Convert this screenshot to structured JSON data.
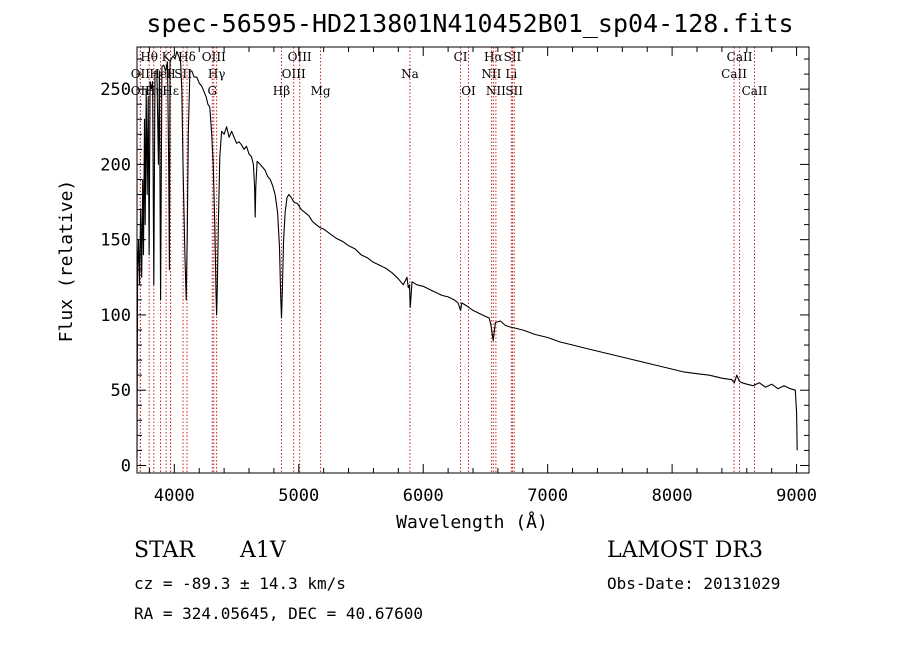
{
  "chart_data": {
    "type": "line",
    "title": "spec-56595-HD213801N410452B01_sp04-128.fits",
    "xlabel": "Wavelength (Å)",
    "ylabel": "Flux (relative)",
    "xlim": [
      3700,
      9100
    ],
    "ylim": [
      -5,
      278
    ],
    "x_ticks": [
      4000,
      5000,
      6000,
      7000,
      8000,
      9000
    ],
    "y_ticks": [
      0,
      50,
      100,
      150,
      200,
      250
    ],
    "series": [
      {
        "name": "flux",
        "points": [
          [
            3700,
            5
          ],
          [
            3705,
            130
          ],
          [
            3712,
            150
          ],
          [
            3720,
            120
          ],
          [
            3730,
            170
          ],
          [
            3738,
            125
          ],
          [
            3746,
            190
          ],
          [
            3752,
            140
          ],
          [
            3760,
            230
          ],
          [
            3766,
            160
          ],
          [
            3774,
            250
          ],
          [
            3782,
            180
          ],
          [
            3790,
            245
          ],
          [
            3797,
            140
          ],
          [
            3805,
            255
          ],
          [
            3815,
            250
          ],
          [
            3825,
            255
          ],
          [
            3835,
            120
          ],
          [
            3845,
            262
          ],
          [
            3860,
            262
          ],
          [
            3872,
            200
          ],
          [
            3880,
            262
          ],
          [
            3890,
            110
          ],
          [
            3900,
            265
          ],
          [
            3915,
            266
          ],
          [
            3930,
            262
          ],
          [
            3945,
            268
          ],
          [
            3955,
            200
          ],
          [
            3960,
            130
          ],
          [
            3965,
            268
          ],
          [
            3975,
            270
          ],
          [
            3990,
            272
          ],
          [
            4005,
            270
          ],
          [
            4020,
            275
          ],
          [
            4035,
            272
          ],
          [
            4050,
            268
          ],
          [
            4060,
            250
          ],
          [
            4070,
            200
          ],
          [
            4085,
            140
          ],
          [
            4095,
            110
          ],
          [
            4103,
            150
          ],
          [
            4112,
            220
          ],
          [
            4125,
            262
          ],
          [
            4140,
            262
          ],
          [
            4160,
            258
          ],
          [
            4180,
            258
          ],
          [
            4200,
            254
          ],
          [
            4220,
            252
          ],
          [
            4240,
            248
          ],
          [
            4255,
            245
          ],
          [
            4270,
            240
          ],
          [
            4285,
            238
          ],
          [
            4300,
            220
          ],
          [
            4312,
            200
          ],
          [
            4325,
            160
          ],
          [
            4335,
            115
          ],
          [
            4340,
            100
          ],
          [
            4345,
            118
          ],
          [
            4355,
            165
          ],
          [
            4365,
            205
          ],
          [
            4380,
            222
          ],
          [
            4400,
            220
          ],
          [
            4420,
            225
          ],
          [
            4440,
            218
          ],
          [
            4460,
            222
          ],
          [
            4480,
            218
          ],
          [
            4500,
            214
          ],
          [
            4520,
            215
          ],
          [
            4540,
            213
          ],
          [
            4560,
            210
          ],
          [
            4580,
            212
          ],
          [
            4600,
            207
          ],
          [
            4620,
            205
          ],
          [
            4635,
            200
          ],
          [
            4645,
            185
          ],
          [
            4650,
            165
          ],
          [
            4655,
            185
          ],
          [
            4665,
            202
          ],
          [
            4690,
            200
          ],
          [
            4710,
            198
          ],
          [
            4730,
            196
          ],
          [
            4750,
            192
          ],
          [
            4770,
            190
          ],
          [
            4790,
            186
          ],
          [
            4810,
            180
          ],
          [
            4830,
            168
          ],
          [
            4845,
            145
          ],
          [
            4855,
            112
          ],
          [
            4861,
            98
          ],
          [
            4867,
            112
          ],
          [
            4877,
            148
          ],
          [
            4890,
            168
          ],
          [
            4905,
            178
          ],
          [
            4920,
            180
          ],
          [
            4940,
            178
          ],
          [
            4960,
            175
          ],
          [
            4990,
            174
          ],
          [
            5020,
            170
          ],
          [
            5050,
            168
          ],
          [
            5080,
            166
          ],
          [
            5110,
            162
          ],
          [
            5140,
            160
          ],
          [
            5170,
            158
          ],
          [
            5200,
            157
          ],
          [
            5250,
            154
          ],
          [
            5300,
            151
          ],
          [
            5350,
            149
          ],
          [
            5400,
            146
          ],
          [
            5450,
            144
          ],
          [
            5500,
            140
          ],
          [
            5550,
            138
          ],
          [
            5600,
            135
          ],
          [
            5650,
            133
          ],
          [
            5700,
            131
          ],
          [
            5750,
            128
          ],
          [
            5800,
            124
          ],
          [
            5840,
            120
          ],
          [
            5870,
            125
          ],
          [
            5880,
            118
          ],
          [
            5890,
            120
          ],
          [
            5895,
            105
          ],
          [
            5900,
            110
          ],
          [
            5910,
            122
          ],
          [
            5950,
            120
          ],
          [
            6000,
            119
          ],
          [
            6050,
            117
          ],
          [
            6100,
            115
          ],
          [
            6150,
            113
          ],
          [
            6200,
            112
          ],
          [
            6250,
            110
          ],
          [
            6280,
            108
          ],
          [
            6300,
            103
          ],
          [
            6310,
            108
          ],
          [
            6350,
            106
          ],
          [
            6400,
            103
          ],
          [
            6450,
            101
          ],
          [
            6500,
            99
          ],
          [
            6530,
            98
          ],
          [
            6545,
            93
          ],
          [
            6555,
            87
          ],
          [
            6562,
            83
          ],
          [
            6568,
            87
          ],
          [
            6580,
            95
          ],
          [
            6620,
            96
          ],
          [
            6660,
            93
          ],
          [
            6700,
            92
          ],
          [
            6750,
            91
          ],
          [
            6800,
            90
          ],
          [
            6900,
            87
          ],
          [
            7000,
            85
          ],
          [
            7100,
            82
          ],
          [
            7200,
            80
          ],
          [
            7300,
            78
          ],
          [
            7400,
            76
          ],
          [
            7500,
            74
          ],
          [
            7600,
            72
          ],
          [
            7700,
            70
          ],
          [
            7800,
            68
          ],
          [
            7900,
            66
          ],
          [
            8000,
            64
          ],
          [
            8100,
            62
          ],
          [
            8200,
            61
          ],
          [
            8300,
            60
          ],
          [
            8400,
            58
          ],
          [
            8480,
            57
          ],
          [
            8500,
            55
          ],
          [
            8520,
            60
          ],
          [
            8540,
            56
          ],
          [
            8560,
            55
          ],
          [
            8600,
            54
          ],
          [
            8650,
            53
          ],
          [
            8700,
            55
          ],
          [
            8750,
            52
          ],
          [
            8800,
            54
          ],
          [
            8850,
            51
          ],
          [
            8900,
            53
          ],
          [
            8950,
            51
          ],
          [
            8990,
            50
          ],
          [
            9000,
            35
          ],
          [
            9005,
            10
          ]
        ]
      }
    ],
    "line_markers": [
      {
        "label": "Hθ",
        "x": 3798,
        "row": 1
      },
      {
        "label": "K",
        "x": 3934,
        "row": 1
      },
      {
        "label": "Hδ",
        "x": 4102,
        "row": 1
      },
      {
        "label": "OIII",
        "x": 4317,
        "row": 1
      },
      {
        "label": "OIII",
        "x": 5007,
        "row": 1
      },
      {
        "label": "CI",
        "x": 6300,
        "row": 1
      },
      {
        "label": "Hα",
        "x": 6563,
        "row": 1
      },
      {
        "label": "SII",
        "x": 6717,
        "row": 1
      },
      {
        "label": "CaII",
        "x": 8542,
        "row": 1
      },
      {
        "label": "OII",
        "x": 3727,
        "row": 2
      },
      {
        "label": "HeI",
        "x": 3889,
        "row": 2
      },
      {
        "label": "H",
        "x": 3969,
        "row": 2
      },
      {
        "label": "SII",
        "x": 4070,
        "row": 2
      },
      {
        "label": "Hγ",
        "x": 4340,
        "row": 2
      },
      {
        "label": "OIII",
        "x": 4959,
        "row": 2
      },
      {
        "label": "Na",
        "x": 5893,
        "row": 2
      },
      {
        "label": "NII",
        "x": 6548,
        "row": 2
      },
      {
        "label": "Li",
        "x": 6708,
        "row": 2
      },
      {
        "label": "CaII",
        "x": 8498,
        "row": 2
      },
      {
        "label": "OII",
        "x": 3727,
        "row": 3
      },
      {
        "label": "Hη",
        "x": 3835,
        "row": 3
      },
      {
        "label": "Hε",
        "x": 3970,
        "row": 3
      },
      {
        "label": "G",
        "x": 4305,
        "row": 3
      },
      {
        "label": "Hβ",
        "x": 4861,
        "row": 3
      },
      {
        "label": "Mg",
        "x": 5175,
        "row": 3
      },
      {
        "label": "OI",
        "x": 6364,
        "row": 3
      },
      {
        "label": "NII",
        "x": 6584,
        "row": 3
      },
      {
        "label": "SII",
        "x": 6731,
        "row": 3
      },
      {
        "label": "CaII",
        "x": 8662,
        "row": 3
      }
    ]
  },
  "info": {
    "object_class": "STAR",
    "subclass": "A1V",
    "survey": "LAMOST DR3",
    "cz": "cz = -89.3 ± 14.3 km/s",
    "obs_date": "Obs-Date: 20131029",
    "coords": "RA = 324.05645, DEC =  40.67600"
  }
}
